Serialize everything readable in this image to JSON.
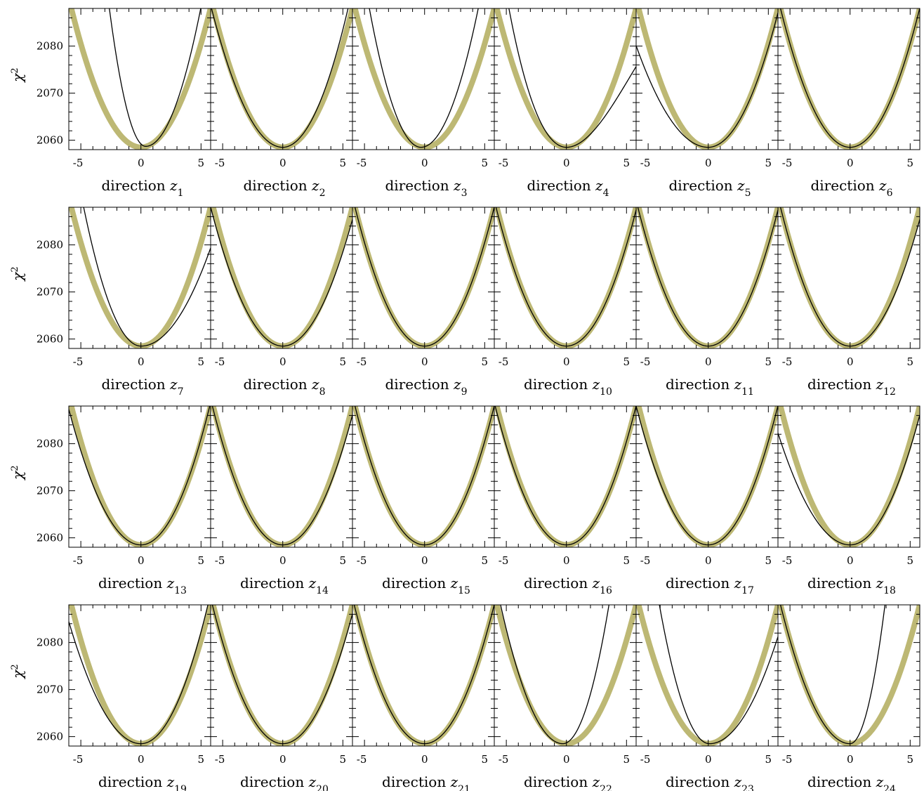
{
  "chart_data": {
    "type": "line",
    "layout": {
      "rows": 4,
      "cols": 6
    },
    "ylabel": "χ",
    "ylabel_superscript": "2",
    "xlim": [
      -6,
      5.8
    ],
    "ylim": [
      2058,
      2088
    ],
    "xticks": [
      -5,
      0,
      5
    ],
    "xtick_labels": [
      "-5",
      "0",
      "5"
    ],
    "yticks": [
      2060,
      2070,
      2080
    ],
    "ytick_labels": [
      "2060",
      "2070",
      "2080"
    ],
    "colors": {
      "reference": "#bdb874",
      "profile": "#000000"
    },
    "reference_curve": {
      "series": "thick olive parabola",
      "minimum": 2058.5,
      "curvature": 0.88
    },
    "panels": [
      {
        "xlabel": "direction z",
        "subscript": "1",
        "profile": {
          "min_x": 0.4,
          "min_y": 2058.7,
          "a_left": 3.2,
          "a_right": 1.4,
          "cubic": 0
        }
      },
      {
        "xlabel": "direction z",
        "subscript": "2",
        "profile": {
          "min_x": 0.0,
          "min_y": 2058.5,
          "a_left": 0.84,
          "a_right": 1.0,
          "cubic": 0
        }
      },
      {
        "xlabel": "direction z",
        "subscript": "3",
        "profile": {
          "min_x": -0.3,
          "min_y": 2058.5,
          "a_left": 1.6,
          "a_right": 1.3,
          "cubic": 0
        }
      },
      {
        "xlabel": "direction z",
        "subscript": "4",
        "profile": {
          "min_x": 0.0,
          "min_y": 2058.5,
          "a_left": 1.05,
          "a_right": 0.8,
          "cubic": -0.05
        }
      },
      {
        "xlabel": "direction z",
        "subscript": "5",
        "profile": {
          "min_x": 0.0,
          "min_y": 2058.5,
          "a_left": 0.6,
          "a_right": 0.85,
          "cubic": 0
        }
      },
      {
        "xlabel": "direction z",
        "subscript": "6",
        "profile": {
          "min_x": 0.0,
          "min_y": 2058.5,
          "a_left": 0.88,
          "a_right": 0.88,
          "cubic": 0
        }
      },
      {
        "xlabel": "direction z",
        "subscript": "7",
        "profile": {
          "min_x": 0.0,
          "min_y": 2058.5,
          "a_left": 1.3,
          "a_right": 0.62,
          "cubic": 0
        }
      },
      {
        "xlabel": "direction z",
        "subscript": "8",
        "profile": {
          "min_x": 0.0,
          "min_y": 2058.5,
          "a_left": 0.82,
          "a_right": 0.8,
          "cubic": 0
        }
      },
      {
        "xlabel": "direction z",
        "subscript": "9",
        "profile": {
          "min_x": 0.0,
          "min_y": 2058.5,
          "a_left": 0.88,
          "a_right": 0.88,
          "cubic": 0
        }
      },
      {
        "xlabel": "direction z",
        "subscript": "10",
        "profile": {
          "min_x": 0.0,
          "min_y": 2058.5,
          "a_left": 0.86,
          "a_right": 0.86,
          "cubic": 0
        }
      },
      {
        "xlabel": "direction z",
        "subscript": "11",
        "profile": {
          "min_x": 0.0,
          "min_y": 2058.5,
          "a_left": 0.86,
          "a_right": 0.86,
          "cubic": 0
        }
      },
      {
        "xlabel": "direction z",
        "subscript": "12",
        "profile": {
          "min_x": 0.0,
          "min_y": 2058.5,
          "a_left": 0.88,
          "a_right": 0.8,
          "cubic": 0
        }
      },
      {
        "xlabel": "direction z",
        "subscript": "13",
        "profile": {
          "min_x": 0.0,
          "min_y": 2058.5,
          "a_left": 0.8,
          "a_right": 0.9,
          "cubic": 0
        }
      },
      {
        "xlabel": "direction z",
        "subscript": "14",
        "profile": {
          "min_x": 0.0,
          "min_y": 2058.5,
          "a_left": 0.86,
          "a_right": 0.82,
          "cubic": 0
        }
      },
      {
        "xlabel": "direction z",
        "subscript": "15",
        "profile": {
          "min_x": 0.0,
          "min_y": 2058.5,
          "a_left": 0.88,
          "a_right": 0.88,
          "cubic": 0
        }
      },
      {
        "xlabel": "direction z",
        "subscript": "16",
        "profile": {
          "min_x": 0.0,
          "min_y": 2058.5,
          "a_left": 0.84,
          "a_right": 0.88,
          "cubic": 0
        }
      },
      {
        "xlabel": "direction z",
        "subscript": "17",
        "profile": {
          "min_x": 0.0,
          "min_y": 2058.5,
          "a_left": 0.82,
          "a_right": 0.88,
          "cubic": 0
        }
      },
      {
        "xlabel": "direction z",
        "subscript": "18",
        "profile": {
          "min_x": 0.0,
          "min_y": 2058.5,
          "a_left": 0.66,
          "a_right": 0.82,
          "cubic": 0
        }
      },
      {
        "xlabel": "direction z",
        "subscript": "19",
        "profile": {
          "min_x": 0.0,
          "min_y": 2058.5,
          "a_left": 0.72,
          "a_right": 0.95,
          "cubic": 0
        }
      },
      {
        "xlabel": "direction z",
        "subscript": "20",
        "profile": {
          "min_x": 0.0,
          "min_y": 2058.5,
          "a_left": 0.86,
          "a_right": 0.82,
          "cubic": 0
        }
      },
      {
        "xlabel": "direction z",
        "subscript": "21",
        "profile": {
          "min_x": 0.0,
          "min_y": 2058.5,
          "a_left": 0.86,
          "a_right": 0.88,
          "cubic": 0
        }
      },
      {
        "xlabel": "direction z",
        "subscript": "22",
        "profile": {
          "min_x": -0.3,
          "min_y": 2058.5,
          "a_left": 1.1,
          "a_right": 2.0,
          "cubic": 0
        }
      },
      {
        "xlabel": "direction z",
        "subscript": "23",
        "profile": {
          "min_x": 0.1,
          "min_y": 2058.5,
          "a_left": 1.7,
          "a_right": 0.7,
          "cubic": 0
        }
      },
      {
        "xlabel": "direction z",
        "subscript": "24",
        "profile": {
          "min_x": 0.0,
          "min_y": 2058.5,
          "a_left": 0.88,
          "a_right": 3.5,
          "cubic": 0
        }
      }
    ]
  }
}
